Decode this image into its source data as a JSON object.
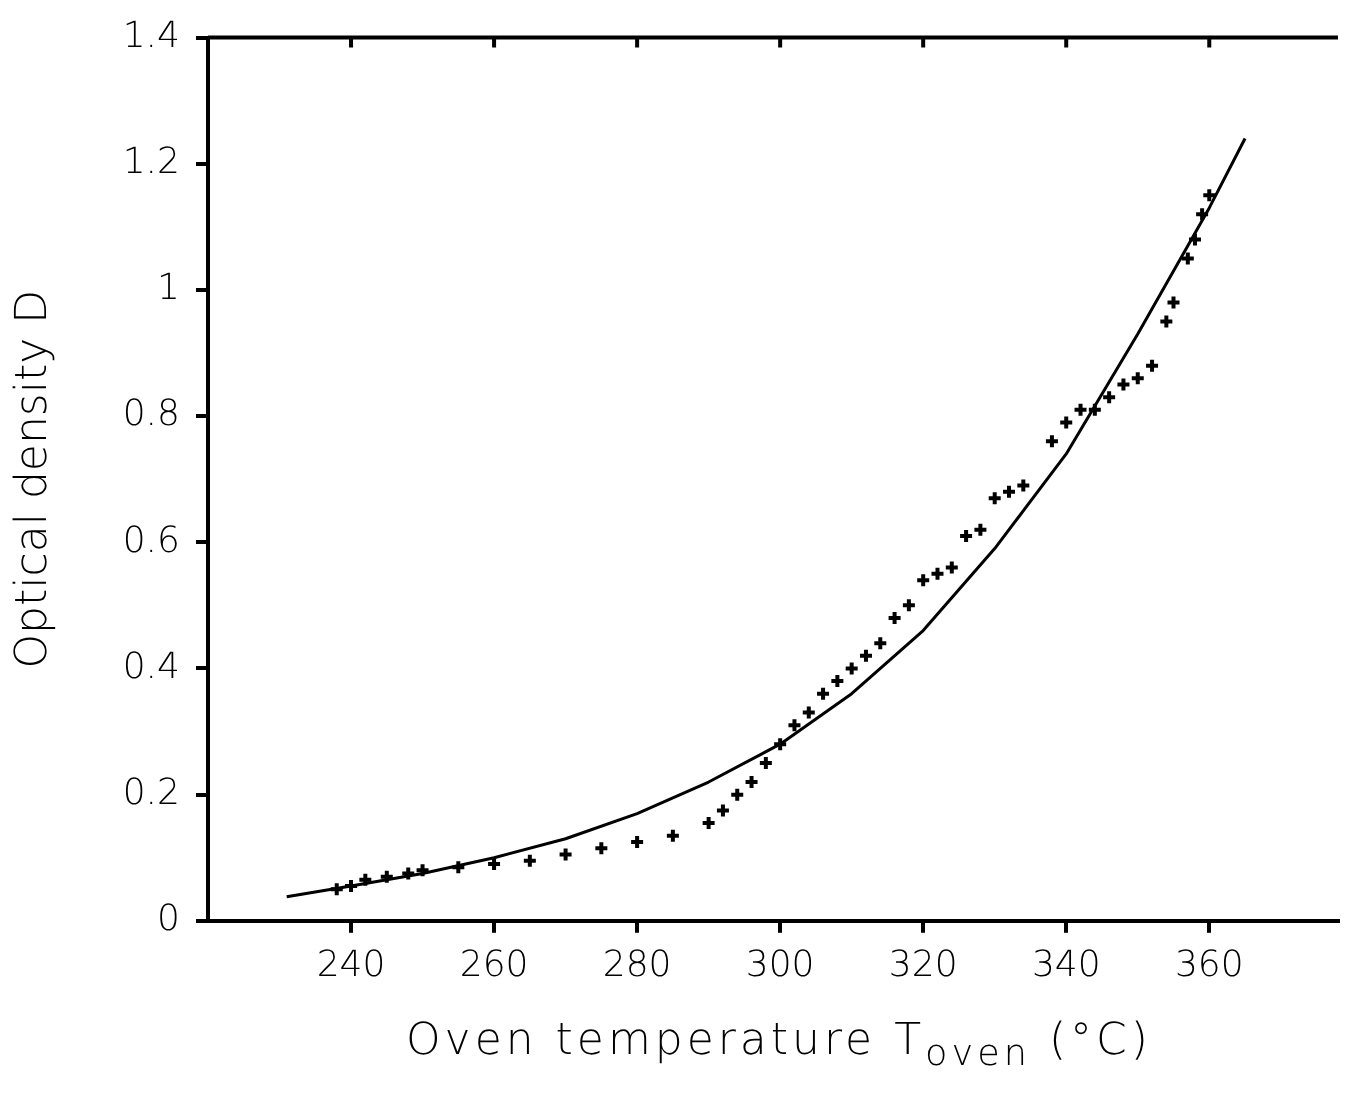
{
  "chart_data": {
    "type": "scatter",
    "xlabel": "Oven temperature T$_{oven}$ (°C)",
    "ylabel": "Optical density D",
    "xlim": [
      220,
      378
    ],
    "xticks": [
      240,
      260,
      280,
      300,
      320,
      340,
      360
    ],
    "ylim": [
      0,
      1.4
    ],
    "yticks": [
      0,
      {
        "value": 0.2,
        "label": "0.2"
      },
      {
        "value": 0.4,
        "label": "0.4"
      },
      {
        "value": 0.6,
        "label": "0.6"
      },
      {
        "value": 0.8,
        "label": "0.8"
      },
      1,
      {
        "value": 1.2,
        "label": "1.2"
      },
      {
        "value": 1.4,
        "label": "1.4"
      }
    ],
    "grid": false,
    "legend": false,
    "marker": "cross",
    "series": [
      {
        "type": "scatter",
        "color": "#000000",
        "x": [
          238,
          240,
          242,
          245,
          248,
          250,
          255,
          260,
          265,
          270,
          275,
          280,
          285,
          290,
          292,
          294,
          296,
          298,
          300,
          302,
          304,
          306,
          308,
          310,
          312,
          314,
          316,
          318,
          320,
          322,
          324,
          326,
          328,
          330,
          332,
          334,
          338,
          340,
          342,
          344,
          346,
          348,
          350,
          352,
          354,
          355,
          357,
          358,
          359,
          360
        ],
        "values": [
          0.05,
          0.055,
          0.065,
          0.07,
          0.075,
          0.08,
          0.085,
          0.09,
          0.095,
          0.105,
          0.115,
          0.125,
          0.135,
          0.155,
          0.175,
          0.2,
          0.22,
          0.25,
          0.28,
          0.31,
          0.33,
          0.36,
          0.38,
          0.4,
          0.42,
          0.44,
          0.48,
          0.5,
          0.54,
          0.55,
          0.56,
          0.61,
          0.62,
          0.67,
          0.68,
          0.69,
          0.76,
          0.79,
          0.81,
          0.81,
          0.83,
          0.85,
          0.86,
          0.88,
          0.95,
          0.98,
          1.05,
          1.08,
          1.12,
          1.15
        ]
      },
      {
        "type": "line",
        "color": "#000000",
        "line_style": "solid",
        "marker": "none",
        "x": [
          231,
          240,
          250,
          260,
          270,
          280,
          290,
          300,
          310,
          320,
          330,
          340,
          350,
          360,
          365
        ],
        "values": [
          0.038,
          0.055,
          0.075,
          0.1,
          0.13,
          0.17,
          0.22,
          0.28,
          0.36,
          0.46,
          0.59,
          0.74,
          0.93,
          1.13,
          1.24
        ]
      }
    ]
  }
}
